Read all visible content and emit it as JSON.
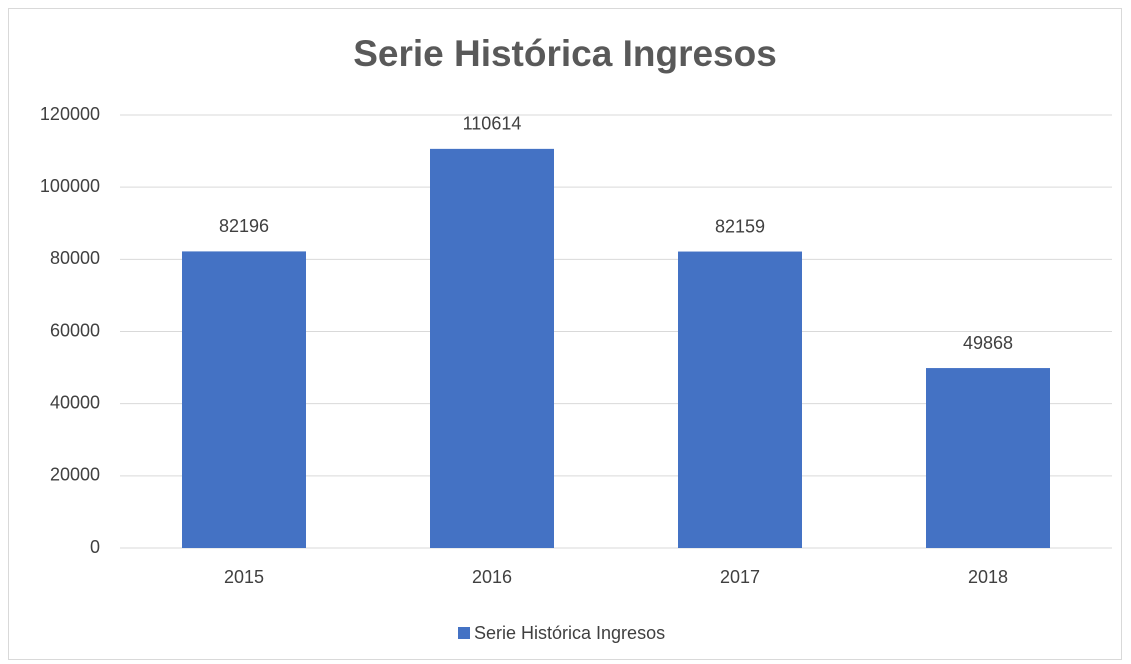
{
  "chart_data": {
    "type": "bar",
    "title": "Serie Histórica Ingresos",
    "categories": [
      "2015",
      "2016",
      "2017",
      "2018"
    ],
    "series": [
      {
        "name": "Serie Histórica Ingresos",
        "color": "#4472c4",
        "values": [
          82196,
          110614,
          82159,
          49868
        ]
      }
    ],
    "ylim": [
      0,
      120000
    ],
    "yticks": [
      0,
      20000,
      40000,
      60000,
      80000,
      100000,
      120000
    ],
    "grid": true,
    "legend": "bottom"
  }
}
